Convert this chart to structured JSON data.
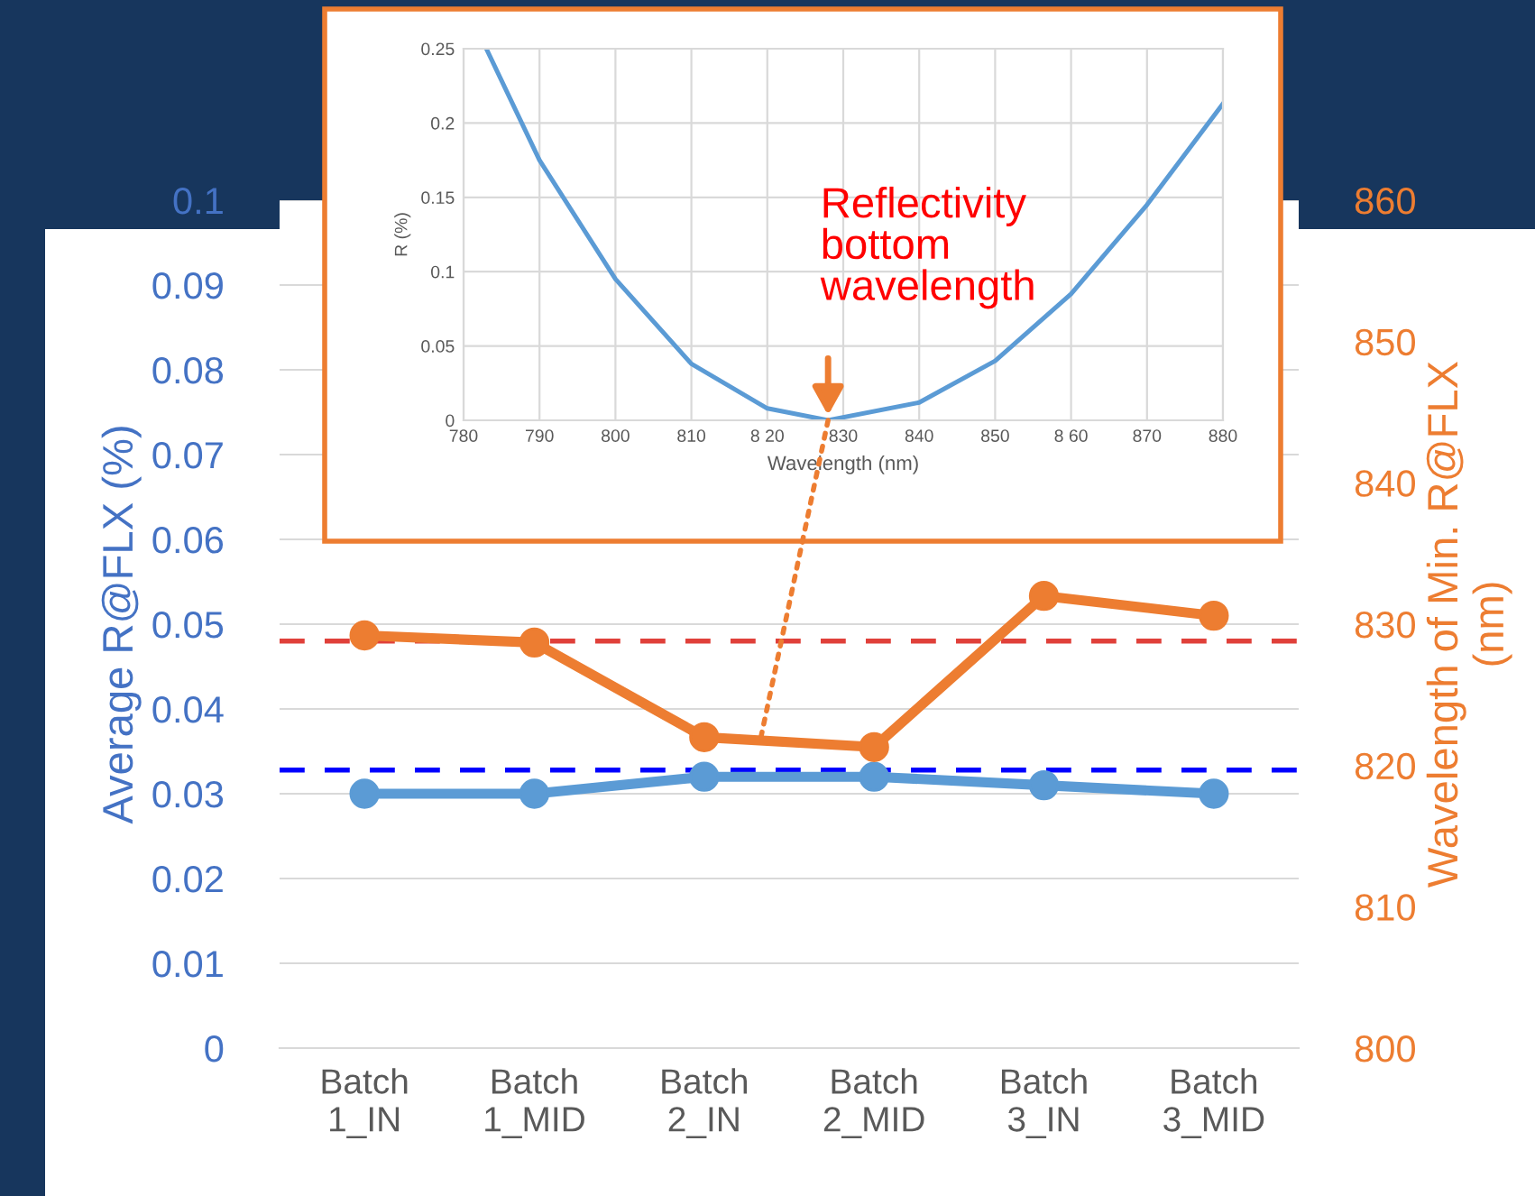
{
  "chart_data": [
    {
      "type": "line",
      "categories": [
        "Batch\n1_IN",
        "Batch\n1_MID",
        "Batch\n2_IN",
        "Batch\n2_MID",
        "Batch\n3_IN",
        "Batch\n3_MID"
      ],
      "ylabel": "Average R@FLX (%)",
      "y2label": "Wavelength of Min. R@FLX\n(nm)",
      "ylim": [
        0,
        0.1
      ],
      "yticks": [
        0,
        0.01,
        0.02,
        0.03,
        0.04,
        0.05,
        0.06,
        0.07,
        0.08,
        0.09,
        0.1
      ],
      "y2lim": [
        800,
        860
      ],
      "y2ticks": [
        800,
        810,
        820,
        830,
        840,
        850,
        860
      ],
      "series": [
        {
          "color": "#5b9bd5",
          "values": [
            0.03,
            0.03,
            0.032,
            0.032,
            0.031,
            0.03
          ]
        },
        {
          "color": "#ed7d31",
          "axis": "y2",
          "values": [
            829.2,
            828.7,
            822.0,
            821.3,
            832.0,
            830.6
          ]
        }
      ],
      "ref_lines": [
        {
          "axis": "y2",
          "value": 828.8,
          "color": "#e0403a",
          "line_style": "dashed"
        },
        {
          "axis": "y",
          "value": 0.0328,
          "color": "#0000ff",
          "line_style": "dashed"
        }
      ],
      "marker": "circle",
      "grid": "y",
      "legend": false
    },
    {
      "type": "line",
      "xlabel": "Wavelength (nm)",
      "ylabel": "R (%)",
      "x": [
        783,
        790,
        800,
        810,
        820,
        828,
        840,
        850,
        860,
        870,
        880
      ],
      "xlim": [
        780,
        880
      ],
      "xticks": [
        780,
        790,
        800,
        810,
        {
          "value": 820,
          "label": "8 20"
        },
        830,
        840,
        850,
        {
          "value": 860,
          "label": "8 60"
        },
        870,
        880
      ],
      "ylim": [
        0,
        0.25
      ],
      "yticks": [
        0,
        0.05,
        0.1,
        0.15,
        0.2,
        0.25
      ],
      "series": [
        {
          "color": "#5b9bd5",
          "values": [
            0.25,
            0.175,
            0.095,
            0.038,
            0.008,
            0.0,
            0.012,
            0.04,
            0.085,
            0.145,
            0.213
          ]
        }
      ],
      "annotations": [
        "Reflectivity\nbottom\nwavelength"
      ],
      "grid": true,
      "marker": "none",
      "legend": false
    }
  ]
}
